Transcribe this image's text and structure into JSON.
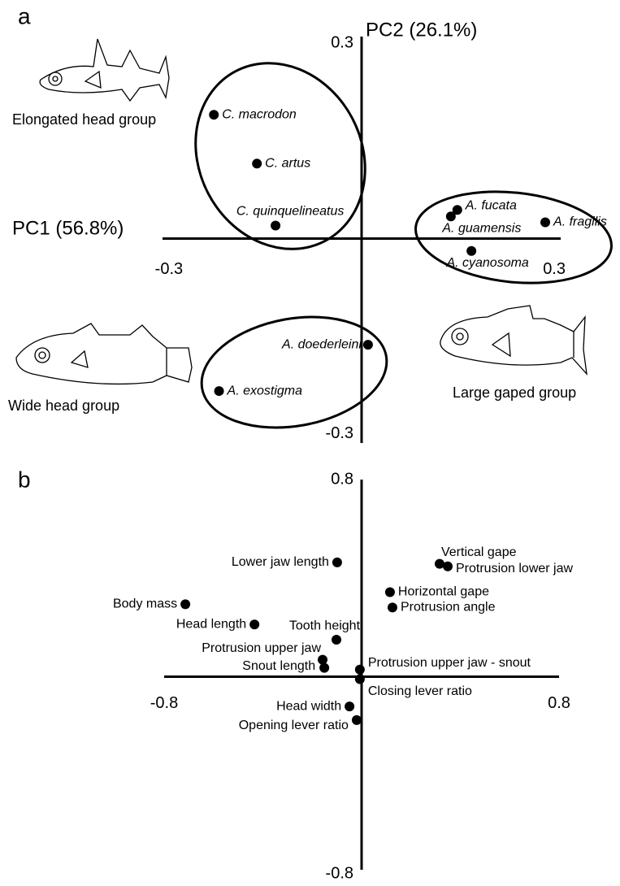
{
  "chart_data": [
    {
      "type": "scatter",
      "panel": "a",
      "xlabel": "PC1 (56.8%)",
      "ylabel": "PC2 (26.1%)",
      "annotations": [
        "Elongated head group",
        "Wide head group",
        "Large gaped group"
      ],
      "labels": [
        "C. macrodon",
        "C. artus",
        "C. quinquelineatus",
        "A. fucata",
        "A. guamensis",
        "A. fragilis",
        "A. cyanosoma",
        "A. doederleini",
        "A. exostigma"
      ],
      "x": [
        -0.23,
        -0.163,
        -0.134,
        0.149,
        0.139,
        0.286,
        0.171,
        0.01,
        -0.222
      ],
      "y": [
        0.19,
        0.115,
        0.02,
        0.044,
        0.034,
        0.025,
        -0.019,
        -0.163,
        -0.234
      ],
      "color": "#000000",
      "italic": true,
      "xlim": [
        -0.31,
        0.31
      ],
      "ylim": [
        -0.32,
        0.31
      ],
      "xticks": [
        -0.3,
        0.3
      ],
      "yticks": [
        -0.3,
        0.3
      ]
    },
    {
      "type": "scatter",
      "panel": "b",
      "labels": [
        "Vertical gape",
        "Protrusion lower jaw",
        "Lower jaw length",
        "Horizontal gape",
        "Protrusion angle",
        "Body mass",
        "Head length",
        "Tooth height",
        "Protrusion upper jaw",
        "Snout length",
        "Protrusion upper jaw - snout",
        "Closing lever ratio",
        "Head width",
        "Opening lever ratio"
      ],
      "x": [
        0.316,
        0.349,
        -0.099,
        0.115,
        0.125,
        -0.714,
        -0.434,
        -0.102,
        -0.158,
        -0.151,
        -0.007,
        -0.007,
        -0.049,
        -0.02
      ],
      "y": [
        0.458,
        0.448,
        0.464,
        0.343,
        0.281,
        0.294,
        0.212,
        0.15,
        0.069,
        0.036,
        0.029,
        -0.01,
        -0.121,
        -0.176
      ],
      "color": "#000000",
      "italic": false,
      "xlim": [
        -0.8,
        0.8
      ],
      "ylim": [
        -0.8,
        0.8
      ],
      "xticks": [
        -0.8,
        0.8
      ],
      "yticks": [
        -0.8,
        0.8
      ]
    }
  ]
}
